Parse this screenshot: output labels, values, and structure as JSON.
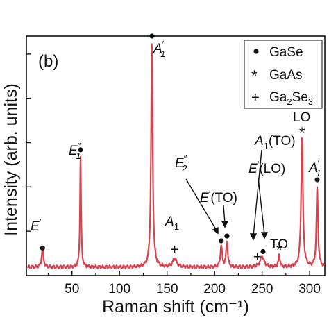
{
  "chart_data": {
    "type": "line",
    "panel_label": "(b)",
    "xlabel": "Raman shift (cm⁻¹)",
    "ylabel": "Intensity (arb. units)",
    "xlim": [
      2,
      316
    ],
    "ylim": [
      0,
      1.0
    ],
    "x_ticks": [
      50,
      100,
      150,
      200,
      250,
      300
    ],
    "y_ticks_unlabeled": true,
    "grid": false,
    "series_color": "#d9434f",
    "peaks": [
      {
        "x": 19,
        "h": 0.08,
        "w": 2.2
      },
      {
        "x": 59,
        "h": 0.46,
        "w": 1.4
      },
      {
        "x": 134,
        "h": 0.93,
        "w": 2.0
      },
      {
        "x": 158,
        "h": 0.035,
        "w": 5.0
      },
      {
        "x": 207,
        "h": 0.09,
        "w": 2.2
      },
      {
        "x": 213,
        "h": 0.11,
        "w": 2.0
      },
      {
        "x": 250,
        "h": 0.045,
        "w": 5.0
      },
      {
        "x": 268,
        "h": 0.05,
        "w": 2.0
      },
      {
        "x": 292,
        "h": 0.54,
        "w": 2.3
      },
      {
        "x": 308,
        "h": 0.33,
        "w": 2.0
      }
    ],
    "baseline": 0.035,
    "legend": {
      "position": "top-right",
      "entries": [
        {
          "symbol": "dot",
          "label": "GaSe"
        },
        {
          "symbol": "star",
          "label": "GaAs"
        },
        {
          "symbol": "plus",
          "label": "Ga2Se3"
        }
      ]
    },
    "annotations": [
      {
        "label": "E′",
        "marker": "dot",
        "mx": 19,
        "my": 0.115
      },
      {
        "label": "E1″",
        "marker": "dot",
        "mx": 59,
        "my": 0.525
      },
      {
        "label": "A1′",
        "marker": "dot",
        "mx": 134,
        "my": 1.0
      },
      {
        "label": "A1",
        "marker": "plus",
        "mx": 158,
        "my": 0.11
      },
      {
        "label": "E2″",
        "marker": "dot",
        "mx": 207,
        "my": 0.145
      },
      {
        "label": "E′(TO)",
        "marker": "dot",
        "mx": 213,
        "my": 0.165
      },
      {
        "label": "A1(TO)",
        "marker": "plus",
        "mx": 245,
        "my": 0.08
      },
      {
        "label": "E′(LO)",
        "marker": "dot",
        "mx": 251,
        "my": 0.1
      },
      {
        "label": "TO",
        "marker": "star",
        "mx": 268,
        "my": 0.11
      },
      {
        "label": "LO",
        "marker": "star",
        "mx": 292,
        "my": 0.6
      },
      {
        "label": "A1′",
        "marker": "dot",
        "mx": 308,
        "my": 0.4
      }
    ]
  }
}
